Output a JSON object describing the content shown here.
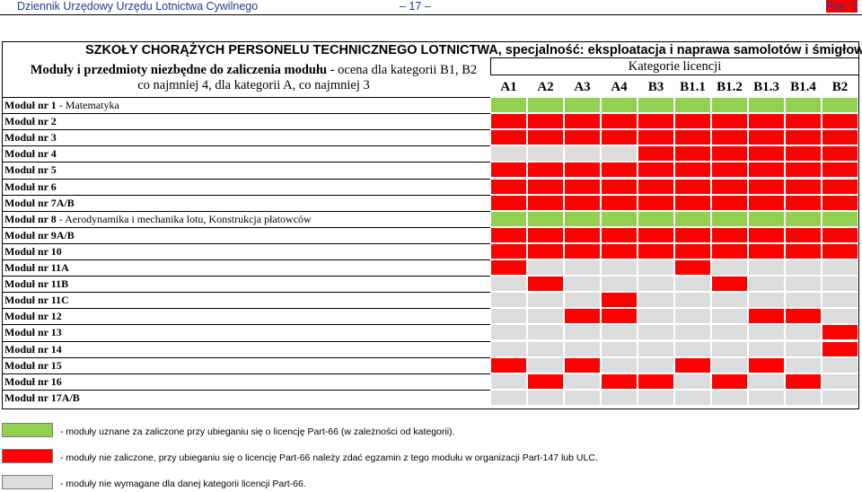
{
  "header": {
    "left": "Dziennik Urzędowy Urzędu Lotnictwa Cywilnego",
    "center": "– 17 –",
    "right": "Poz. 3"
  },
  "table": {
    "title": "SZKOŁY CHORĄŻYCH PERSONELU TECHNICZNEGO LOTNICTWA, specjalność: eksploatacja i naprawa samolotów i śmigłowców",
    "subtitle_bold": "Moduły i przedmioty niezbędne do zaliczenia modułu -",
    "subtitle_rest": " ocena dla kategorii B1, B2 co najmniej 4, dla kategorii A, co najmniej 3",
    "categories_header": "Kategorie licencji",
    "categories": [
      "A1",
      "A2",
      "A3",
      "A4",
      "B3",
      "B1.1",
      "B1.2",
      "B1.3",
      "B1.4",
      "B2"
    ],
    "colors": {
      "g": "#92d050",
      "r": "#ff0000",
      "n": "#dcdcdc"
    },
    "modules": [
      {
        "label": "Moduł nr 1",
        "detail": " - Matematyka",
        "cells": "gggggggggg"
      },
      {
        "label": "Moduł nr 2",
        "detail": "",
        "cells": "rrrrrrrrrr"
      },
      {
        "label": "Moduł nr 3",
        "detail": "",
        "cells": "rrrrrrrrrr"
      },
      {
        "label": "Moduł nr 4",
        "detail": "",
        "cells": "nnnnrrrrrr"
      },
      {
        "label": "Moduł nr 5",
        "detail": "",
        "cells": "rrrrrrrrrr"
      },
      {
        "label": "Moduł nr 6",
        "detail": "",
        "cells": "rrrrrrrrrr"
      },
      {
        "label": "Moduł nr 7A/B",
        "detail": "",
        "cells": "rrrrrrrrrr"
      },
      {
        "label": "Moduł nr 8",
        "detail": " - Aerodynamika i mechanika lotu, Konstrukcja płatowców",
        "cells": "gggggggggg"
      },
      {
        "label": "Moduł nr 9A/B",
        "detail": "",
        "cells": "rrrrrrrrrr"
      },
      {
        "label": "Moduł nr 10",
        "detail": "",
        "cells": "rrrrrrrrrr"
      },
      {
        "label": "Moduł nr 11A",
        "detail": "",
        "cells": "rnnnnrnnnn"
      },
      {
        "label": "Moduł nr 11B",
        "detail": "",
        "cells": "nrnnnnrnnn"
      },
      {
        "label": "Moduł nr 11C",
        "detail": "",
        "cells": "nnnrnnnnnn"
      },
      {
        "label": "Moduł nr 12",
        "detail": "",
        "cells": "nnrrnnnrrn"
      },
      {
        "label": "Moduł nr 13",
        "detail": "",
        "cells": "nnnnnnnnnr"
      },
      {
        "label": "Moduł nr 14",
        "detail": "",
        "cells": "nnnnnnnnnr"
      },
      {
        "label": "Moduł nr 15",
        "detail": "",
        "cells": "rnrnnrnrnn"
      },
      {
        "label": "Moduł nr 16",
        "detail": "",
        "cells": "nrnrrnrnrn"
      },
      {
        "label": "Moduł nr 17A/B",
        "detail": "",
        "cells": "nnnnnnnnnn"
      }
    ]
  },
  "legend": [
    {
      "color": "g",
      "text": "- moduły uznane za zaliczone przy ubieganiu się o licencję Part-66 (w zależności od kategorii)."
    },
    {
      "color": "r",
      "text": "- moduły nie zaliczone, przy ubieganiu się o licencję Part-66 należy zdać egzamin z tego modułu w organizacji Part-147 lub ULC."
    },
    {
      "color": "n",
      "text": "- moduły nie wymagane dla danej kategorii licencji Part-66."
    }
  ]
}
